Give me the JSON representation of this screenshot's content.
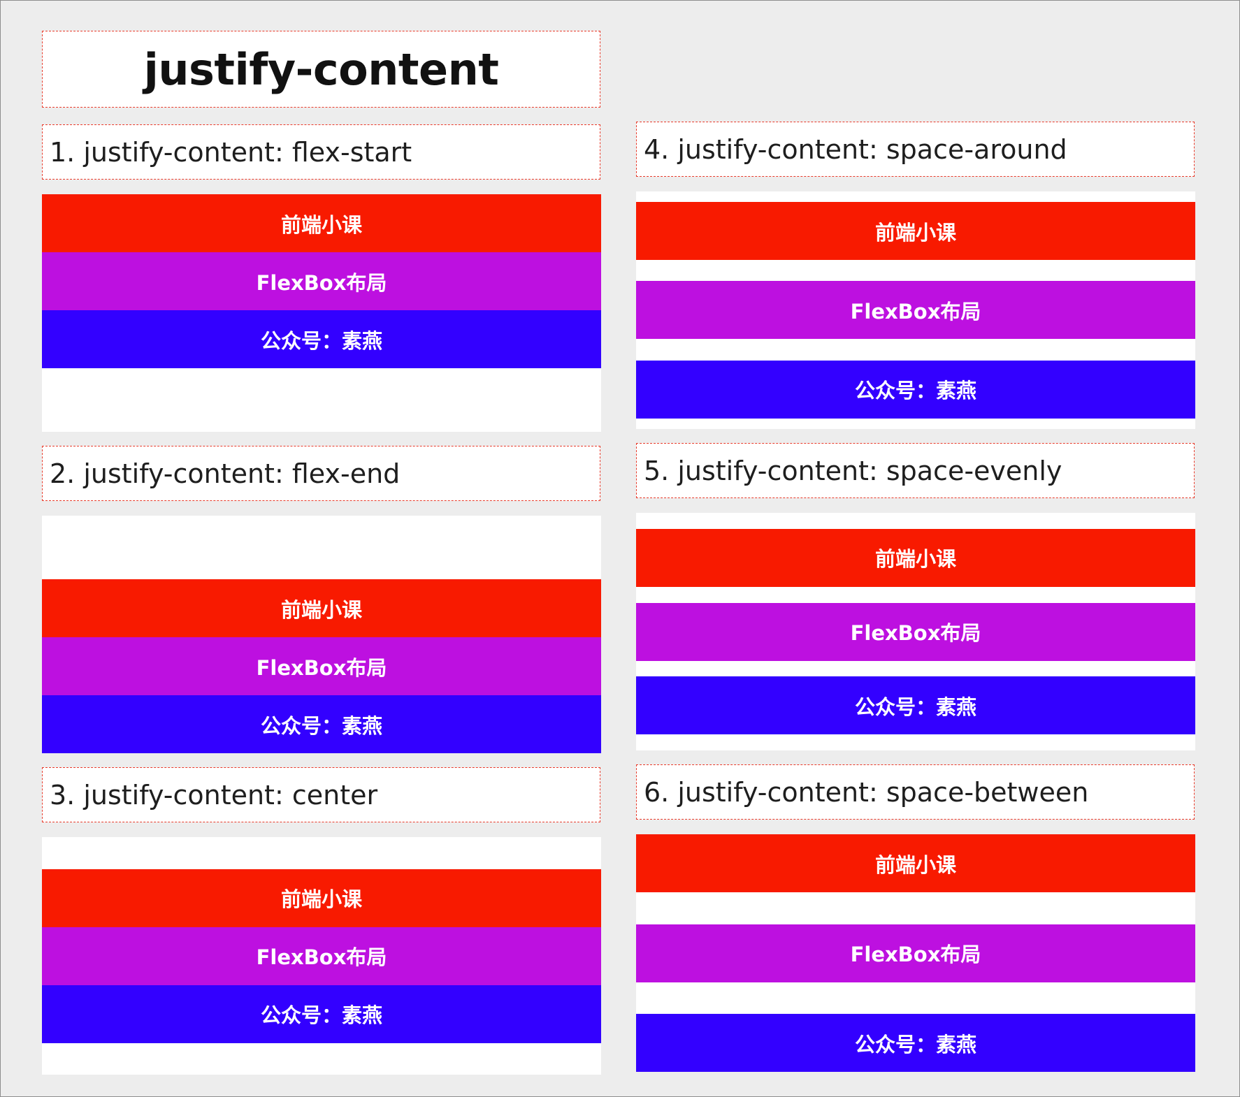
{
  "title": "justify-content",
  "colors": {
    "frame_background": "#ededed",
    "panel_background": "#ffffff",
    "dashed_border": "#e83a2a",
    "item_text": "#ffffff"
  },
  "items": [
    {
      "label": "前端小课",
      "color": "#f81a00"
    },
    {
      "label": "FlexBox布局",
      "color": "#bd10e0"
    },
    {
      "label": "公众号：素燕",
      "color": "#3300ff"
    }
  ],
  "panels": [
    {
      "title": "1. justify-content: flex-start",
      "justify": "flex-start"
    },
    {
      "title": "2. justify-content: flex-end",
      "justify": "flex-end"
    },
    {
      "title": "3. justify-content: center",
      "justify": "center"
    },
    {
      "title": "4. justify-content: space-around",
      "justify": "space-around"
    },
    {
      "title": "5. justify-content: space-evenly",
      "justify": "space-evenly"
    },
    {
      "title": "6. justify-content: space-between",
      "justify": "space-between"
    }
  ]
}
